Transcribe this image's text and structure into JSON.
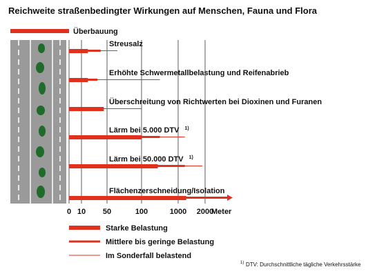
{
  "title": "Reichweite straßenbedingter Wirkungen auf Menschen, Fauna und Flora",
  "top_label": "Überbauung",
  "rows": [
    {
      "label": "Streusalz",
      "strong": 20,
      "medium": 40,
      "special": 65
    },
    {
      "label": "Erhöhte Schwermetallbelastung und Reifenabrieb",
      "strong": 20,
      "medium": 35,
      "special": 550
    },
    {
      "label": "Überschreitung von Richtwerten bei Dioxinen und Furanen",
      "strong": 45,
      "special": 100
    },
    {
      "label": "Lärm bei 5.000 DTV",
      "note": "1)",
      "strong": 100,
      "medium": 550,
      "special": 1250
    },
    {
      "label": "Lärm bei 50.000 DTV",
      "note": "1)",
      "strong": 500,
      "medium": 1250,
      "special": 1900
    },
    {
      "label": "Flächenzerschneidung/Isolation",
      "strong": 1300,
      "medium": 2000,
      "arrow": true
    }
  ],
  "axis": {
    "ticks": [
      0,
      10,
      50,
      100,
      1000,
      2000
    ],
    "unit": "Meter"
  },
  "legend": [
    "Starke Belastung",
    "Mittlere bis geringe Belastung",
    "Im Sonderfall belastend"
  ],
  "footnote": {
    "marker": "1)",
    "text": "DTV: Durchschnittliche tägliche Verkehrsstärke"
  }
}
